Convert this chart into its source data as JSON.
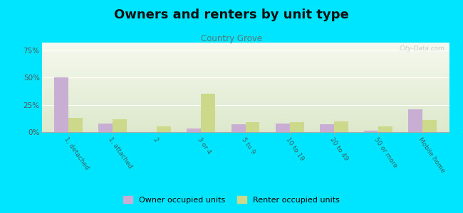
{
  "title": "Owners and renters by unit type",
  "subtitle": "Country Grove",
  "categories": [
    "1, detached",
    "1, attached",
    "2",
    "3 or 4",
    "5 to 9",
    "10 to 19",
    "20 to 49",
    "50 or more",
    "Mobile home"
  ],
  "owner_values": [
    50,
    8,
    0,
    3,
    7,
    8,
    7,
    1,
    21
  ],
  "renter_values": [
    13,
    12,
    5,
    35,
    9,
    9,
    10,
    5,
    11
  ],
  "owner_color": "#c9aed4",
  "renter_color": "#ccd98a",
  "background_outer": "#00e5ff",
  "background_chart_top": "#f5f8ee",
  "background_chart_bottom": "#dce8cc",
  "title_fontsize": 13,
  "subtitle_fontsize": 8.5,
  "ylabel_ticks": [
    "0%",
    "25%",
    "50%",
    "75%"
  ],
  "ytick_vals": [
    0,
    25,
    50,
    75
  ],
  "ylim": [
    0,
    82
  ],
  "watermark": "City-Data.com",
  "bar_width": 0.32,
  "legend_owner": "Owner occupied units",
  "legend_renter": "Renter occupied units"
}
